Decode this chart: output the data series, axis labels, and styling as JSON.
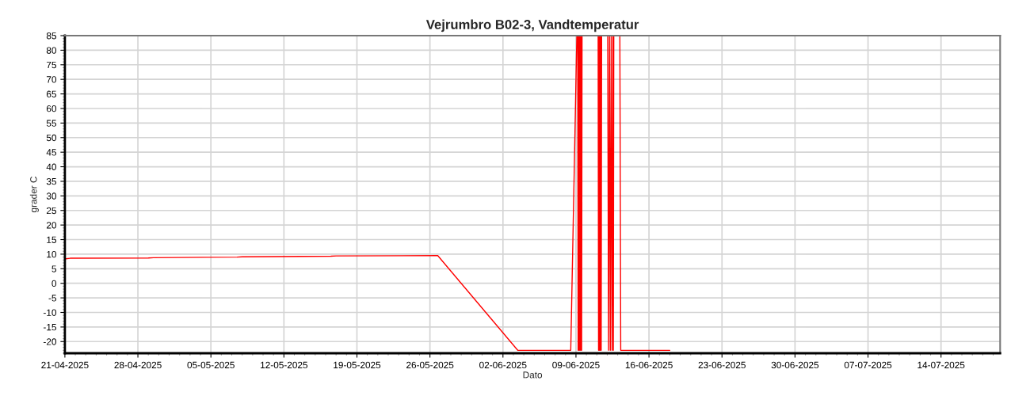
{
  "chart_data": {
    "type": "line",
    "title": "Vejrumbro B02-3, Vandtemperatur",
    "xlabel": "Dato",
    "ylabel": "grader C",
    "x": [
      "2025-04-21T02:00",
      "2025-04-21T12:00",
      "2025-04-29T00:00",
      "2025-04-29T12:00",
      "2025-05-07T12:00",
      "2025-05-08T00:00",
      "2025-05-16T12:00",
      "2025-05-17T00:00",
      "2025-05-26T18:00",
      "2025-06-03T10:00",
      "2025-06-08T12:00",
      "2025-06-09T02:00",
      "2025-06-09T04:00",
      "2025-06-09T05:00",
      "2025-06-09T06:00",
      "2025-06-09T07:00",
      "2025-06-09T08:00",
      "2025-06-09T09:00",
      "2025-06-09T10:00",
      "2025-06-09T11:00",
      "2025-06-09T12:00",
      "2025-06-09T13:00",
      "2025-06-09T14:00",
      "2025-06-11T03:00",
      "2025-06-11T04:00",
      "2025-06-11T05:00",
      "2025-06-11T06:00",
      "2025-06-11T07:00",
      "2025-06-11T08:00",
      "2025-06-11T09:00",
      "2025-06-11T10:00",
      "2025-06-11T11:00",
      "2025-06-11T12:00",
      "2025-06-12T01:00",
      "2025-06-12T03:00",
      "2025-06-12T05:00",
      "2025-06-12T07:00",
      "2025-06-12T09:00",
      "2025-06-12T11:00",
      "2025-06-12T13:00",
      "2025-06-12T14:00",
      "2025-06-12T15:00",
      "2025-06-12T16:00",
      "2025-06-13T05:00",
      "2025-06-13T07:00",
      "2025-06-18T00:00"
    ],
    "series": [
      {
        "color": "#ff0000",
        "values": [
          8.4,
          8.6,
          8.7,
          8.8,
          9.0,
          9.1,
          9.3,
          9.4,
          9.5,
          -23,
          -23,
          85,
          85,
          -23,
          85,
          -23,
          85,
          -23,
          85,
          -23,
          85,
          -23,
          85,
          85,
          -23,
          85,
          -23,
          85,
          -23,
          85,
          -23,
          85,
          85,
          85,
          -23,
          85,
          -23,
          85,
          -23,
          85,
          -23,
          85,
          85,
          85,
          -23,
          -23
        ]
      }
    ],
    "xlim": [
      "2025-04-21",
      "2025-07-19T16:00"
    ],
    "xticks": [
      {
        "value": "2025-04-21",
        "label": "21-04-2025"
      },
      {
        "value": "2025-04-28",
        "label": "28-04-2025"
      },
      {
        "value": "2025-05-05",
        "label": "05-05-2025"
      },
      {
        "value": "2025-05-12",
        "label": "12-05-2025"
      },
      {
        "value": "2025-05-19",
        "label": "19-05-2025"
      },
      {
        "value": "2025-05-26",
        "label": "26-05-2025"
      },
      {
        "value": "2025-06-02",
        "label": "02-06-2025"
      },
      {
        "value": "2025-06-09",
        "label": "09-06-2025"
      },
      {
        "value": "2025-06-16",
        "label": "16-06-2025"
      },
      {
        "value": "2025-06-23",
        "label": "23-06-2025"
      },
      {
        "value": "2025-06-30",
        "label": "30-06-2025"
      },
      {
        "value": "2025-07-07",
        "label": "07-07-2025"
      },
      {
        "value": "2025-07-14",
        "label": "14-07-2025"
      }
    ],
    "ylim": [
      -24,
      85
    ],
    "yticks": [
      -20,
      -15,
      -10,
      -5,
      0,
      5,
      10,
      15,
      20,
      25,
      30,
      35,
      40,
      45,
      50,
      55,
      60,
      65,
      70,
      75,
      80,
      85
    ],
    "grid": true,
    "marker": "none",
    "line_style": "solid"
  }
}
